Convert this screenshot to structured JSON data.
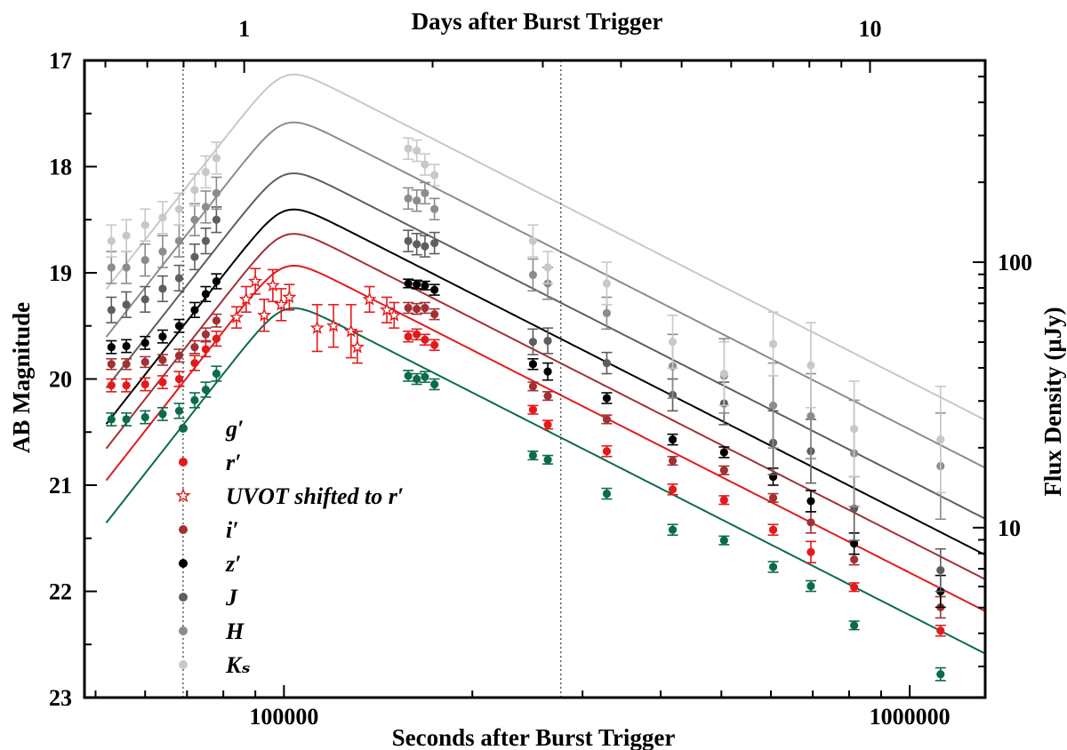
{
  "chart_data": {
    "type": "scatter",
    "title": "",
    "xlabel": "Seconds after Burst Trigger",
    "ylabel": "AB Magnitude",
    "top_xlabel": "Days after Burst Trigger",
    "right_ylabel": "Flux Density (μJy)",
    "x_scale": "log",
    "xlim": [
      48000,
      1320000
    ],
    "ylim": [
      23,
      17
    ],
    "x_ticks": [
      100000,
      1000000
    ],
    "x_tick_labels": [
      "100000",
      "1000000"
    ],
    "y_ticks": [
      17,
      18,
      19,
      20,
      21,
      22,
      23
    ],
    "y_tick_labels": [
      "17",
      "18",
      "19",
      "20",
      "21",
      "22",
      "23"
    ],
    "top_ticks_days": [
      1,
      10
    ],
    "top_tick_labels": [
      "1",
      "10"
    ],
    "right_ticks_uJy": [
      10,
      100
    ],
    "right_tick_labels": [
      "10",
      "100"
    ],
    "vertical_lines_seconds": [
      69000,
      277000
    ],
    "legend_position": "lower-left",
    "model": {
      "peak_time_s": 100000,
      "rise_index": 3.0,
      "decay_index": 1.2
    },
    "series": [
      {
        "name": "g′",
        "color": "#0b6b4a",
        "marker": "circle",
        "peak_mag": 19.35,
        "points": [
          [
            53000,
            20.38,
            0.06
          ],
          [
            56000,
            20.38,
            0.06
          ],
          [
            60000,
            20.36,
            0.06
          ],
          [
            64000,
            20.33,
            0.06
          ],
          [
            68000,
            20.3,
            0.07
          ],
          [
            72000,
            20.2,
            0.07
          ],
          [
            75000,
            20.1,
            0.07
          ],
          [
            78000,
            19.95,
            0.07
          ],
          [
            158000,
            19.97,
            0.05
          ],
          [
            163000,
            20.0,
            0.05
          ],
          [
            168000,
            19.98,
            0.05
          ],
          [
            174000,
            20.05,
            0.05
          ],
          [
            250000,
            20.72,
            0.04
          ],
          [
            264000,
            20.76,
            0.04
          ],
          [
            328000,
            21.08,
            0.05
          ],
          [
            418000,
            21.42,
            0.05
          ],
          [
            505000,
            21.52,
            0.04
          ],
          [
            605000,
            21.77,
            0.05
          ],
          [
            695000,
            21.95,
            0.05
          ],
          [
            815000,
            22.32,
            0.04
          ],
          [
            1120000,
            22.78,
            0.06
          ]
        ]
      },
      {
        "name": "r′",
        "color": "#e31a1c",
        "marker": "circle",
        "peak_mag": 18.95,
        "points": [
          [
            53000,
            20.06,
            0.06
          ],
          [
            56000,
            20.06,
            0.06
          ],
          [
            60000,
            20.05,
            0.06
          ],
          [
            64000,
            20.03,
            0.06
          ],
          [
            68000,
            20.0,
            0.07
          ],
          [
            72000,
            19.85,
            0.07
          ],
          [
            75000,
            19.72,
            0.07
          ],
          [
            78000,
            19.62,
            0.07
          ],
          [
            158000,
            19.6,
            0.05
          ],
          [
            163000,
            19.58,
            0.05
          ],
          [
            168000,
            19.63,
            0.05
          ],
          [
            174000,
            19.68,
            0.05
          ],
          [
            250000,
            20.29,
            0.04
          ],
          [
            264000,
            20.43,
            0.04
          ],
          [
            328000,
            20.68,
            0.05
          ],
          [
            418000,
            21.04,
            0.05
          ],
          [
            505000,
            21.14,
            0.04
          ],
          [
            605000,
            21.42,
            0.05
          ],
          [
            695000,
            21.63,
            0.1
          ],
          [
            815000,
            21.96,
            0.04
          ],
          [
            1120000,
            22.37,
            0.05
          ]
        ]
      },
      {
        "name": "UVOT shifted to r′",
        "color": "#e31a1c",
        "marker": "star",
        "peak_mag": 18.95,
        "points": [
          [
            84000,
            19.42,
            0.1
          ],
          [
            87000,
            19.25,
            0.12
          ],
          [
            90000,
            19.08,
            0.12
          ],
          [
            93000,
            19.4,
            0.15
          ],
          [
            96000,
            19.12,
            0.15
          ],
          [
            99000,
            19.3,
            0.15
          ],
          [
            102000,
            19.23,
            0.12
          ],
          [
            113000,
            19.52,
            0.22
          ],
          [
            120000,
            19.5,
            0.2
          ],
          [
            128000,
            19.55,
            0.25
          ],
          [
            131000,
            19.7,
            0.15
          ],
          [
            137000,
            19.25,
            0.12
          ],
          [
            146000,
            19.35,
            0.12
          ],
          [
            150000,
            19.4,
            0.12
          ]
        ]
      },
      {
        "name": "i′",
        "color": "#a23134",
        "marker": "circle",
        "peak_mag": 18.65,
        "points": [
          [
            53000,
            19.86,
            0.05
          ],
          [
            56000,
            19.86,
            0.05
          ],
          [
            60000,
            19.84,
            0.05
          ],
          [
            64000,
            19.82,
            0.05
          ],
          [
            68000,
            19.78,
            0.06
          ],
          [
            72000,
            19.7,
            0.06
          ],
          [
            75000,
            19.58,
            0.06
          ],
          [
            78000,
            19.45,
            0.06
          ],
          [
            158000,
            19.33,
            0.05
          ],
          [
            163000,
            19.34,
            0.05
          ],
          [
            168000,
            19.33,
            0.05
          ],
          [
            174000,
            19.39,
            0.05
          ],
          [
            250000,
            20.07,
            0.04
          ],
          [
            264000,
            20.16,
            0.04
          ],
          [
            328000,
            20.38,
            0.04
          ],
          [
            418000,
            20.77,
            0.04
          ],
          [
            505000,
            20.86,
            0.04
          ],
          [
            605000,
            21.12,
            0.04
          ],
          [
            695000,
            21.35,
            0.1
          ],
          [
            815000,
            21.7,
            0.05
          ],
          [
            1120000,
            22.15,
            0.1
          ]
        ]
      },
      {
        "name": "z′",
        "color": "#000000",
        "marker": "circle",
        "peak_mag": 18.42,
        "points": [
          [
            53000,
            19.7,
            0.06
          ],
          [
            56000,
            19.69,
            0.06
          ],
          [
            60000,
            19.66,
            0.06
          ],
          [
            64000,
            19.6,
            0.06
          ],
          [
            68000,
            19.5,
            0.06
          ],
          [
            72000,
            19.35,
            0.07
          ],
          [
            75000,
            19.2,
            0.07
          ],
          [
            78000,
            19.08,
            0.07
          ],
          [
            158000,
            19.1,
            0.04
          ],
          [
            163000,
            19.11,
            0.04
          ],
          [
            168000,
            19.12,
            0.04
          ],
          [
            174000,
            19.16,
            0.05
          ],
          [
            250000,
            19.86,
            0.05
          ],
          [
            264000,
            19.93,
            0.08
          ],
          [
            328000,
            20.18,
            0.05
          ],
          [
            418000,
            20.57,
            0.05
          ],
          [
            505000,
            20.69,
            0.05
          ],
          [
            605000,
            20.92,
            0.08
          ],
          [
            695000,
            21.15,
            0.1
          ],
          [
            815000,
            21.55,
            0.1
          ],
          [
            1120000,
            22.0,
            0.15
          ]
        ]
      },
      {
        "name": "J",
        "color": "#5e5e5e",
        "marker": "circle",
        "peak_mag": 18.08,
        "points": [
          [
            53000,
            19.35,
            0.12
          ],
          [
            56000,
            19.3,
            0.12
          ],
          [
            60000,
            19.25,
            0.12
          ],
          [
            64000,
            19.15,
            0.12
          ],
          [
            68000,
            19.05,
            0.12
          ],
          [
            72000,
            18.85,
            0.12
          ],
          [
            75000,
            18.7,
            0.12
          ],
          [
            78000,
            18.5,
            0.12
          ],
          [
            158000,
            18.7,
            0.1
          ],
          [
            163000,
            18.73,
            0.1
          ],
          [
            168000,
            18.75,
            0.1
          ],
          [
            174000,
            18.72,
            0.1
          ],
          [
            250000,
            19.65,
            0.12
          ],
          [
            264000,
            19.64,
            0.12
          ],
          [
            328000,
            19.85,
            0.1
          ],
          [
            418000,
            20.15,
            0.15
          ],
          [
            505000,
            20.23,
            0.2
          ],
          [
            605000,
            20.6,
            0.3
          ],
          [
            695000,
            20.68,
            0.3
          ],
          [
            815000,
            21.22,
            0.3
          ],
          [
            1120000,
            21.8,
            0.2
          ]
        ]
      },
      {
        "name": "H",
        "color": "#8c8c8c",
        "marker": "circle",
        "peak_mag": 17.6,
        "points": [
          [
            53000,
            18.95,
            0.15
          ],
          [
            56000,
            18.95,
            0.15
          ],
          [
            60000,
            18.88,
            0.15
          ],
          [
            64000,
            18.8,
            0.15
          ],
          [
            68000,
            18.7,
            0.15
          ],
          [
            72000,
            18.5,
            0.15
          ],
          [
            75000,
            18.38,
            0.15
          ],
          [
            78000,
            18.25,
            0.15
          ],
          [
            158000,
            18.3,
            0.1
          ],
          [
            163000,
            18.32,
            0.1
          ],
          [
            168000,
            18.25,
            0.1
          ],
          [
            174000,
            18.4,
            0.1
          ],
          [
            250000,
            19.02,
            0.15
          ],
          [
            264000,
            19.1,
            0.15
          ],
          [
            328000,
            19.38,
            0.15
          ],
          [
            418000,
            19.88,
            0.3
          ],
          [
            505000,
            19.97,
            0.35
          ],
          [
            605000,
            20.25,
            0.4
          ],
          [
            695000,
            20.35,
            0.4
          ],
          [
            815000,
            20.7,
            0.5
          ],
          [
            1120000,
            20.82,
            0.5
          ]
        ]
      },
      {
        "name": "Kₛ",
        "color": "#c8c8c8",
        "marker": "circle",
        "peak_mag": 17.15,
        "points": [
          [
            53000,
            18.7,
            0.15
          ],
          [
            56000,
            18.65,
            0.15
          ],
          [
            60000,
            18.55,
            0.15
          ],
          [
            64000,
            18.48,
            0.15
          ],
          [
            68000,
            18.4,
            0.15
          ],
          [
            72000,
            18.22,
            0.15
          ],
          [
            75000,
            18.05,
            0.15
          ],
          [
            78000,
            17.92,
            0.15
          ],
          [
            158000,
            17.83,
            0.1
          ],
          [
            163000,
            17.85,
            0.1
          ],
          [
            168000,
            17.98,
            0.1
          ],
          [
            174000,
            18.08,
            0.1
          ],
          [
            250000,
            18.7,
            0.15
          ],
          [
            264000,
            18.95,
            0.15
          ],
          [
            328000,
            19.1,
            0.2
          ],
          [
            418000,
            19.65,
            0.25
          ],
          [
            505000,
            19.95,
            0.3
          ],
          [
            605000,
            19.67,
            0.3
          ],
          [
            695000,
            19.87,
            0.4
          ],
          [
            815000,
            20.47,
            0.45
          ],
          [
            1120000,
            20.57,
            0.5
          ]
        ]
      }
    ]
  }
}
